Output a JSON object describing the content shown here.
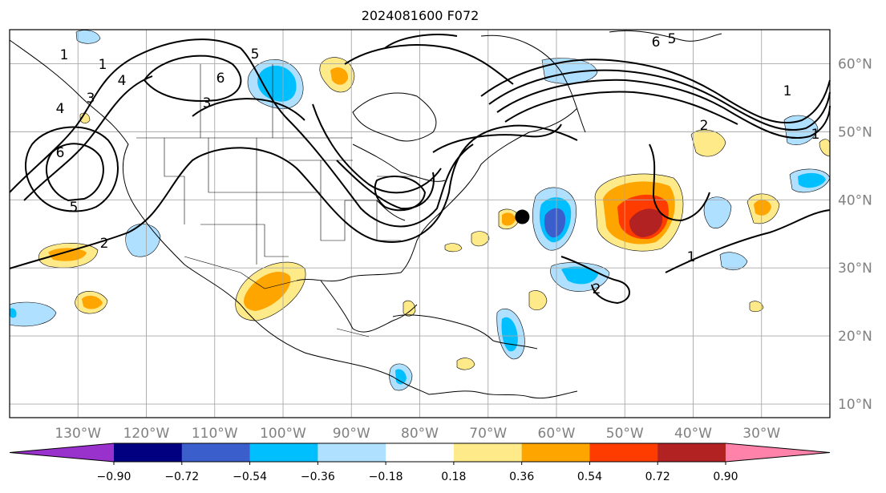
{
  "title": "2024081600 F072",
  "map": {
    "lon_range": [
      -140,
      -20
    ],
    "lat_range": [
      8,
      65
    ],
    "lat_labels": [
      "10°N",
      "20°N",
      "30°N",
      "40°N",
      "50°N",
      "60°N"
    ],
    "lon_labels": [
      "130°W",
      "120°W",
      "110°W",
      "100°W",
      "90°W",
      "80°W",
      "70°W",
      "60°W",
      "50°W",
      "40°W",
      "30°W"
    ],
    "contour_labels": [
      "1",
      "1",
      "2",
      "3",
      "3",
      "4",
      "4",
      "5",
      "5",
      "6",
      "6",
      "5",
      "6",
      "1",
      "1",
      "1",
      "2",
      "2"
    ],
    "storm_marker": {
      "label": "",
      "lon": -65.0,
      "lat": 37.5
    }
  },
  "colorbar": {
    "labels": [
      "−0.90",
      "−0.72",
      "−0.54",
      "−0.36",
      "−0.18",
      "0.18",
      "0.36",
      "0.54",
      "0.72",
      "0.90"
    ],
    "colors": [
      "#9932cc",
      "#000080",
      "#3a5fcd",
      "#00bfff",
      "#b0e0ff",
      "#ffffff",
      "#ffea8a",
      "#ffa500",
      "#ff3c00",
      "#b22222",
      "#ff82ab"
    ]
  }
}
